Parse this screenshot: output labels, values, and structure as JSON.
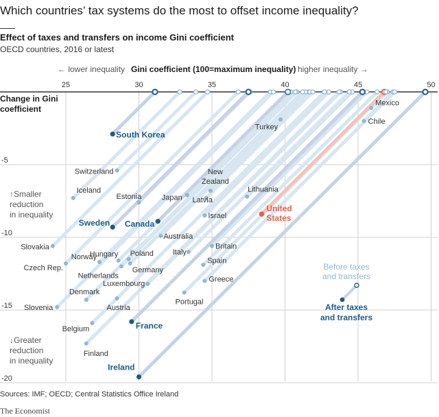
{
  "header": {
    "title": "Which countries’ tax systems do the most to offset income inequality?",
    "subtitle": "Effect of taxes and transfers on income Gini coefficient",
    "note": "OECD countries, 2016 or latest"
  },
  "footer": {
    "source": "Sources: IMF; OECD; Central Statistics Office Ireland",
    "brand": "The Economist"
  },
  "colors": {
    "before": "#8fb8d2",
    "after": "#1d5c86",
    "highlight_line": "#c6d2e6",
    "light_line": "#d7e6f0",
    "us": "#e8604a",
    "us_line": "#f5c3b6",
    "grid": "#cfcfcf"
  },
  "chart_data": {
    "type": "scatter",
    "title": "Gini coefficient (100=maximum inequality)",
    "xlabel_left": "← lower inequality",
    "xlabel_right": "higher inequality →",
    "ylabel": "Change in Gini coefficient",
    "y_annotation_top": "↑Smaller reduction in inequality",
    "y_annotation_bottom": "↓Greater reduction in inequality",
    "xlim": [
      24,
      50
    ],
    "ylim": [
      -20.5,
      0
    ],
    "x_ticks": [
      25,
      30,
      35,
      40,
      45,
      50
    ],
    "y_ticks": [
      -5,
      -10,
      -15,
      -20
    ],
    "legend": {
      "before_label": "Before taxes and transfers",
      "after_label": "After taxes and transfers"
    },
    "series": [
      {
        "country": "Mexico",
        "after": 45.9,
        "change": -1.1
      },
      {
        "country": "Chile",
        "after": 45.4,
        "change": -2.0
      },
      {
        "country": "Turkey",
        "after": 39.7,
        "change": -1.9
      },
      {
        "country": "South Korea",
        "after": 28.2,
        "change": -2.9,
        "highlight": true
      },
      {
        "country": "Switzerland",
        "after": 28.5,
        "change": -5.4
      },
      {
        "country": "Iceland",
        "after": 25.5,
        "change": -7.3
      },
      {
        "country": "New Zealand",
        "after": 34.9,
        "change": -6.8
      },
      {
        "country": "Lithuania",
        "after": 37.4,
        "change": -7.2
      },
      {
        "country": "Latvia",
        "after": 34.6,
        "change": -7.3
      },
      {
        "country": "Estonia",
        "after": 30.0,
        "change": -7.6
      },
      {
        "country": "Japan",
        "after": 33.3,
        "change": -7.1
      },
      {
        "country": "Israel",
        "after": 34.5,
        "change": -8.5
      },
      {
        "country": "United States",
        "after": 38.4,
        "change": -8.4,
        "us": true
      },
      {
        "country": "Sweden",
        "after": 28.2,
        "change": -9.3,
        "highlight": true
      },
      {
        "country": "Canada",
        "after": 31.3,
        "change": -8.9,
        "highlight": true
      },
      {
        "country": "Australia",
        "after": 31.5,
        "change": -9.9
      },
      {
        "country": "Slovakia",
        "after": 24.1,
        "change": -10.6
      },
      {
        "country": "Britain",
        "after": 35.0,
        "change": -10.6
      },
      {
        "country": "Italy",
        "after": 33.4,
        "change": -11.0
      },
      {
        "country": "Hungary",
        "after": 28.6,
        "change": -11.6
      },
      {
        "country": "Norway",
        "after": 27.3,
        "change": -11.7
      },
      {
        "country": "Poland",
        "after": 29.3,
        "change": -11.5
      },
      {
        "country": "Czech Rep.",
        "after": 25.0,
        "change": -11.8
      },
      {
        "country": "Netherlands",
        "after": 28.8,
        "change": -12.0
      },
      {
        "country": "Germany",
        "after": 29.4,
        "change": -11.8
      },
      {
        "country": "Spain",
        "after": 34.4,
        "change": -11.9
      },
      {
        "country": "Luxembourg",
        "after": 30.6,
        "change": -13.2
      },
      {
        "country": "Greece",
        "after": 34.5,
        "change": -13.0
      },
      {
        "country": "Denmark",
        "after": 26.4,
        "change": -14.3
      },
      {
        "country": "Portugal",
        "after": 33.1,
        "change": -13.8
      },
      {
        "country": "Slovenia",
        "after": 24.4,
        "change": -14.8
      },
      {
        "country": "Austria",
        "after": 28.5,
        "change": -14.2
      },
      {
        "country": "Belgium",
        "after": 26.8,
        "change": -15.9
      },
      {
        "country": "France",
        "after": 29.5,
        "change": -15.8,
        "highlight": true
      },
      {
        "country": "Finland",
        "after": 26.4,
        "change": -17.3
      },
      {
        "country": "Ireland",
        "after": 30.0,
        "change": -19.6,
        "highlight": true
      }
    ]
  }
}
